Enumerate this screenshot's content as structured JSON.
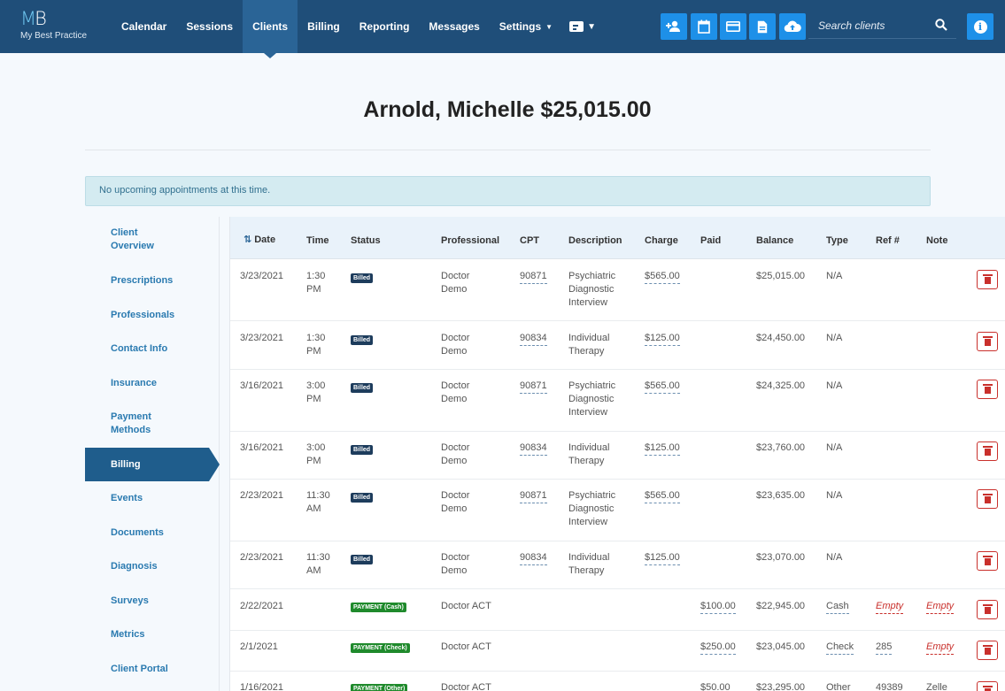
{
  "brand": {
    "logo_mark_left": "M",
    "logo_mark_right": "B",
    "tagline": "My Best Practice"
  },
  "nav": {
    "items": [
      "Calendar",
      "Sessions",
      "Clients",
      "Billing",
      "Reporting",
      "Messages",
      "Settings"
    ],
    "active": "Clients"
  },
  "quick_actions": [
    "add-client-icon",
    "calendar-icon",
    "credit-card-icon",
    "document-icon",
    "cloud-upload-icon"
  ],
  "search": {
    "placeholder": "Search clients",
    "value": ""
  },
  "page": {
    "title": "Arnold, Michelle $25,015.00",
    "alert": "No upcoming appointments at this time."
  },
  "sidebar": {
    "items": [
      {
        "label": "Client Overview"
      },
      {
        "label": "Prescriptions"
      },
      {
        "label": "Professionals"
      },
      {
        "label": "Contact Info"
      },
      {
        "label": "Insurance"
      },
      {
        "label": "Payment Methods"
      },
      {
        "label": "Billing"
      },
      {
        "label": "Events"
      },
      {
        "label": "Documents"
      },
      {
        "label": "Diagnosis"
      },
      {
        "label": "Surveys"
      },
      {
        "label": "Metrics"
      },
      {
        "label": "Client Portal"
      }
    ],
    "active": "Billing"
  },
  "table": {
    "headers": [
      "Date",
      "Time",
      "Status",
      "Professional",
      "CPT",
      "Description",
      "Charge",
      "Paid",
      "Balance",
      "Type",
      "Ref #",
      "Note"
    ],
    "rows": [
      {
        "date": "3/23/2021",
        "time": "1:30 PM",
        "status": "Billed",
        "professional": "Doctor Demo",
        "cpt": "90871",
        "description": "Psychiatric Diagnostic Interview",
        "charge": "$565.00",
        "paid": "",
        "balance": "$25,015.00",
        "type": "N/A",
        "ref": "",
        "note": ""
      },
      {
        "date": "3/23/2021",
        "time": "1:30 PM",
        "status": "Billed",
        "professional": "Doctor Demo",
        "cpt": "90834",
        "description": "Individual Therapy",
        "charge": "$125.00",
        "paid": "",
        "balance": "$24,450.00",
        "type": "N/A",
        "ref": "",
        "note": ""
      },
      {
        "date": "3/16/2021",
        "time": "3:00 PM",
        "status": "Billed",
        "professional": "Doctor Demo",
        "cpt": "90871",
        "description": "Psychiatric Diagnostic Interview",
        "charge": "$565.00",
        "paid": "",
        "balance": "$24,325.00",
        "type": "N/A",
        "ref": "",
        "note": ""
      },
      {
        "date": "3/16/2021",
        "time": "3:00 PM",
        "status": "Billed",
        "professional": "Doctor Demo",
        "cpt": "90834",
        "description": "Individual Therapy",
        "charge": "$125.00",
        "paid": "",
        "balance": "$23,760.00",
        "type": "N/A",
        "ref": "",
        "note": ""
      },
      {
        "date": "2/23/2021",
        "time": "11:30 AM",
        "status": "Billed",
        "professional": "Doctor Demo",
        "cpt": "90871",
        "description": "Psychiatric Diagnostic Interview",
        "charge": "$565.00",
        "paid": "",
        "balance": "$23,635.00",
        "type": "N/A",
        "ref": "",
        "note": ""
      },
      {
        "date": "2/23/2021",
        "time": "11:30 AM",
        "status": "Billed",
        "professional": "Doctor Demo",
        "cpt": "90834",
        "description": "Individual Therapy",
        "charge": "$125.00",
        "paid": "",
        "balance": "$23,070.00",
        "type": "N/A",
        "ref": "",
        "note": ""
      },
      {
        "date": "2/22/2021",
        "time": "",
        "status": "PAYMENT (Cash)",
        "professional": "Doctor ACT",
        "cpt": "",
        "description": "",
        "charge": "",
        "paid": "$100.00",
        "balance": "$22,945.00",
        "type": "Cash",
        "ref": "Empty",
        "note": "Empty"
      },
      {
        "date": "2/1/2021",
        "time": "",
        "status": "PAYMENT (Check)",
        "professional": "Doctor ACT",
        "cpt": "",
        "description": "",
        "charge": "",
        "paid": "$250.00",
        "balance": "$23,045.00",
        "type": "Check",
        "ref": "285",
        "note": "Empty"
      },
      {
        "date": "1/16/2021",
        "time": "",
        "status": "PAYMENT (Other)",
        "professional": "Doctor ACT",
        "cpt": "",
        "description": "",
        "charge": "",
        "paid": "$50.00",
        "balance": "$23,295.00",
        "type": "Other",
        "ref": "49389",
        "note": "Zelle"
      }
    ]
  },
  "colors": {
    "nav_bg": "#1f4e79",
    "accent": "#1e90e8",
    "billed_badge": "#1d3c5c",
    "payment_badge": "#1f8a2c",
    "delete": "#c9302c"
  }
}
